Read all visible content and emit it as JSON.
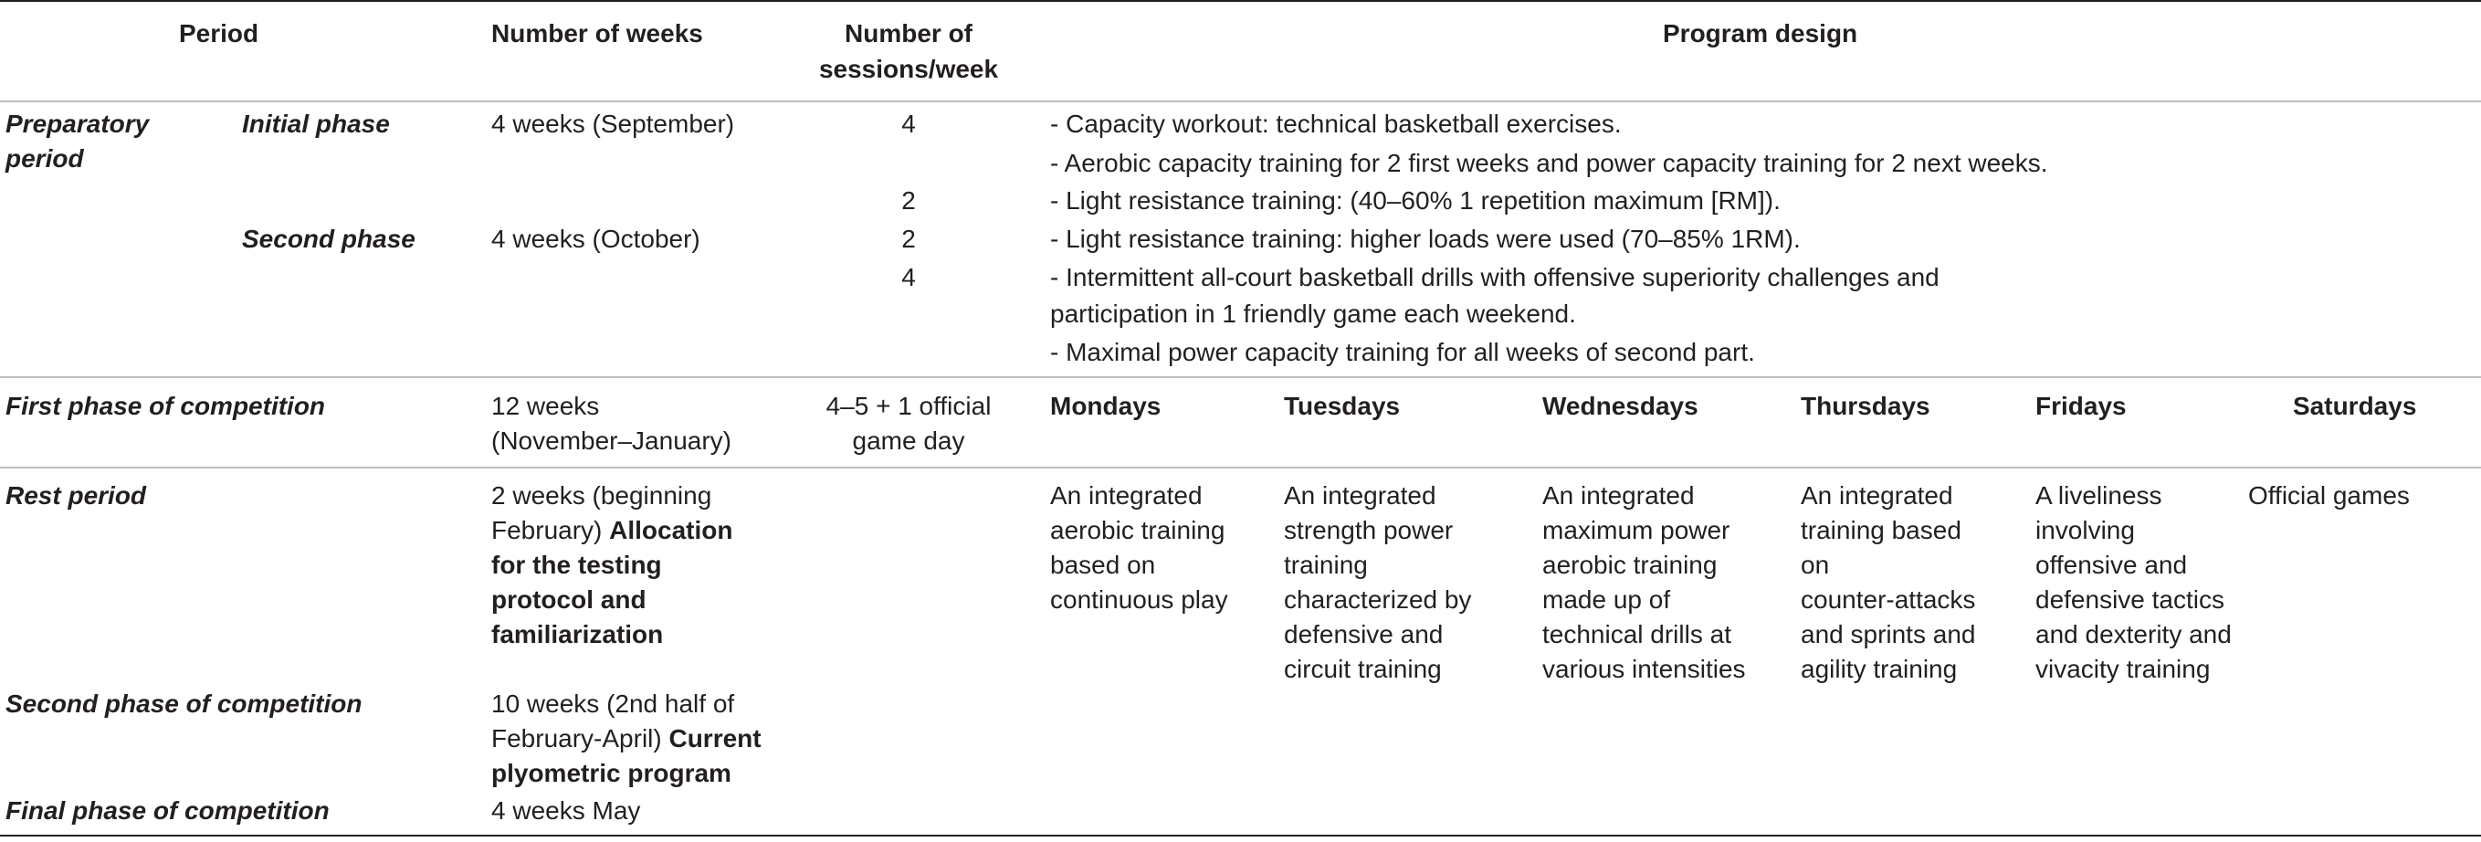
{
  "header": {
    "period": "Period",
    "weeks": "Number of weeks",
    "sessions": [
      "Number of",
      "sessions/week"
    ],
    "design": "Program design"
  },
  "preparatory": {
    "label": [
      "Preparatory",
      "period"
    ],
    "initial_phase": "Initial phase",
    "initial_weeks": "4 weeks (September)",
    "initial_sessions": "4",
    "initial_items": [
      "- Capacity workout: technical basketball exercises.",
      "- Aerobic capacity training for 2 first weeks and power capacity training for 2 next weeks."
    ],
    "initial_sessions_2": "2",
    "initial_item_3": "- Light resistance training: (40–60% 1 repetition maximum [RM]).",
    "second_phase": "Second phase",
    "second_weeks": "4 weeks (October)",
    "second_sessions_a": "2",
    "second_item_a": "- Light resistance training: higher loads were used (70–85% 1RM).",
    "second_sessions_b": "4",
    "second_item_b": [
      "- Intermittent all-court basketball drills with offensive superiority challenges and",
      "participation in 1 friendly game each weekend."
    ],
    "second_item_c": "- Maximal power capacity training for all weeks of second part."
  },
  "first_competition": {
    "label": "First phase of competition",
    "weeks": [
      "12 weeks",
      "(November–January)"
    ],
    "sessions": [
      "4–5 + 1 official",
      "game day"
    ],
    "days": [
      "Mondays",
      "Tuesdays",
      "Wednesdays",
      "Thursdays",
      "Fridays",
      "Saturdays"
    ]
  },
  "rest": {
    "label": "Rest period",
    "weeks_plain": "2 weeks (beginning",
    "weeks_line2_plain": "February)",
    "weeks_line2_bold": "Allocation",
    "weeks_bold_rest": [
      "for the testing",
      "protocol and",
      "familiarization"
    ],
    "monday": [
      "An integrated",
      "aerobic training",
      "based on",
      "continuous play"
    ],
    "tuesday": [
      "An integrated",
      "strength power",
      "training",
      "characterized by",
      "defensive and",
      "circuit training"
    ],
    "wednesday": [
      "An integrated",
      "maximum power",
      "aerobic training",
      "made up of",
      "technical drills at",
      "various intensities"
    ],
    "thursday": [
      "An integrated",
      "training based",
      "on",
      "counter-attacks",
      "and sprints and",
      "agility training"
    ],
    "friday": [
      "A liveliness",
      "involving",
      "offensive and",
      "defensive tactics",
      "and dexterity and",
      "vivacity training"
    ],
    "saturday": "Official games"
  },
  "second_competition": {
    "label": "Second phase of competition",
    "weeks_line1": "10 weeks (2nd half of",
    "weeks_line2_plain": "February-April)",
    "weeks_line2_bold": "Current",
    "weeks_line3_bold": "plyometric program"
  },
  "final_competition": {
    "label": "Final phase of competition",
    "weeks": "4 weeks May"
  }
}
